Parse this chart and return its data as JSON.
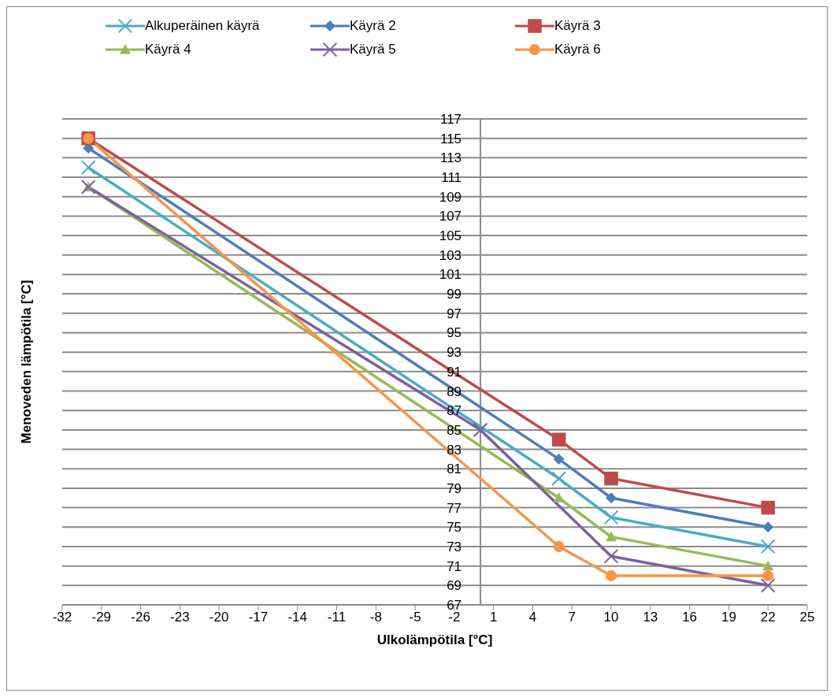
{
  "chart_data": {
    "type": "line",
    "xlabel": "Ulkolämpötila [°C]",
    "ylabel": "Menoveden lämpötila [°C]",
    "xlim": [
      -32,
      25
    ],
    "xticks": [
      -32,
      -29,
      -26,
      -23,
      -20,
      -17,
      -14,
      -11,
      -8,
      -5,
      -2,
      1,
      4,
      7,
      10,
      13,
      16,
      19,
      22,
      25
    ],
    "ylim": [
      67,
      117
    ],
    "yticks": [
      67,
      69,
      71,
      73,
      75,
      77,
      79,
      81,
      83,
      85,
      87,
      89,
      91,
      93,
      95,
      97,
      99,
      101,
      103,
      105,
      107,
      109,
      111,
      113,
      115,
      117
    ],
    "grid": "y",
    "legend": "top",
    "line_style": "solid",
    "series": [
      {
        "name": "Alkuperäinen käyrä",
        "color": "#4aacc6",
        "marker": "cross",
        "x": [
          -30,
          6,
          10,
          22
        ],
        "values": [
          112,
          80,
          76,
          73
        ]
      },
      {
        "name": "Käyrä 2",
        "color": "#4a7ebb",
        "marker": "diamond",
        "x": [
          -30,
          6,
          10,
          22
        ],
        "values": [
          114,
          82,
          78,
          75
        ]
      },
      {
        "name": "Käyrä 3",
        "color": "#be4b48",
        "marker": "square",
        "x": [
          -30,
          6,
          10,
          22
        ],
        "values": [
          115,
          84,
          80,
          77
        ]
      },
      {
        "name": "Käyrä 4",
        "color": "#98b954",
        "marker": "triangle",
        "x": [
          -30,
          6,
          10,
          22
        ],
        "values": [
          110,
          78,
          74,
          71
        ]
      },
      {
        "name": "Käyrä 5",
        "color": "#7d60a0",
        "marker": "cross",
        "x": [
          -30,
          0,
          10,
          22
        ],
        "values": [
          110,
          85,
          72,
          69
        ]
      },
      {
        "name": "Käyrä 6",
        "color": "#f79646",
        "marker": "circle",
        "x": [
          -30,
          6,
          10,
          22
        ],
        "values": [
          115,
          73,
          70,
          70
        ]
      }
    ]
  }
}
